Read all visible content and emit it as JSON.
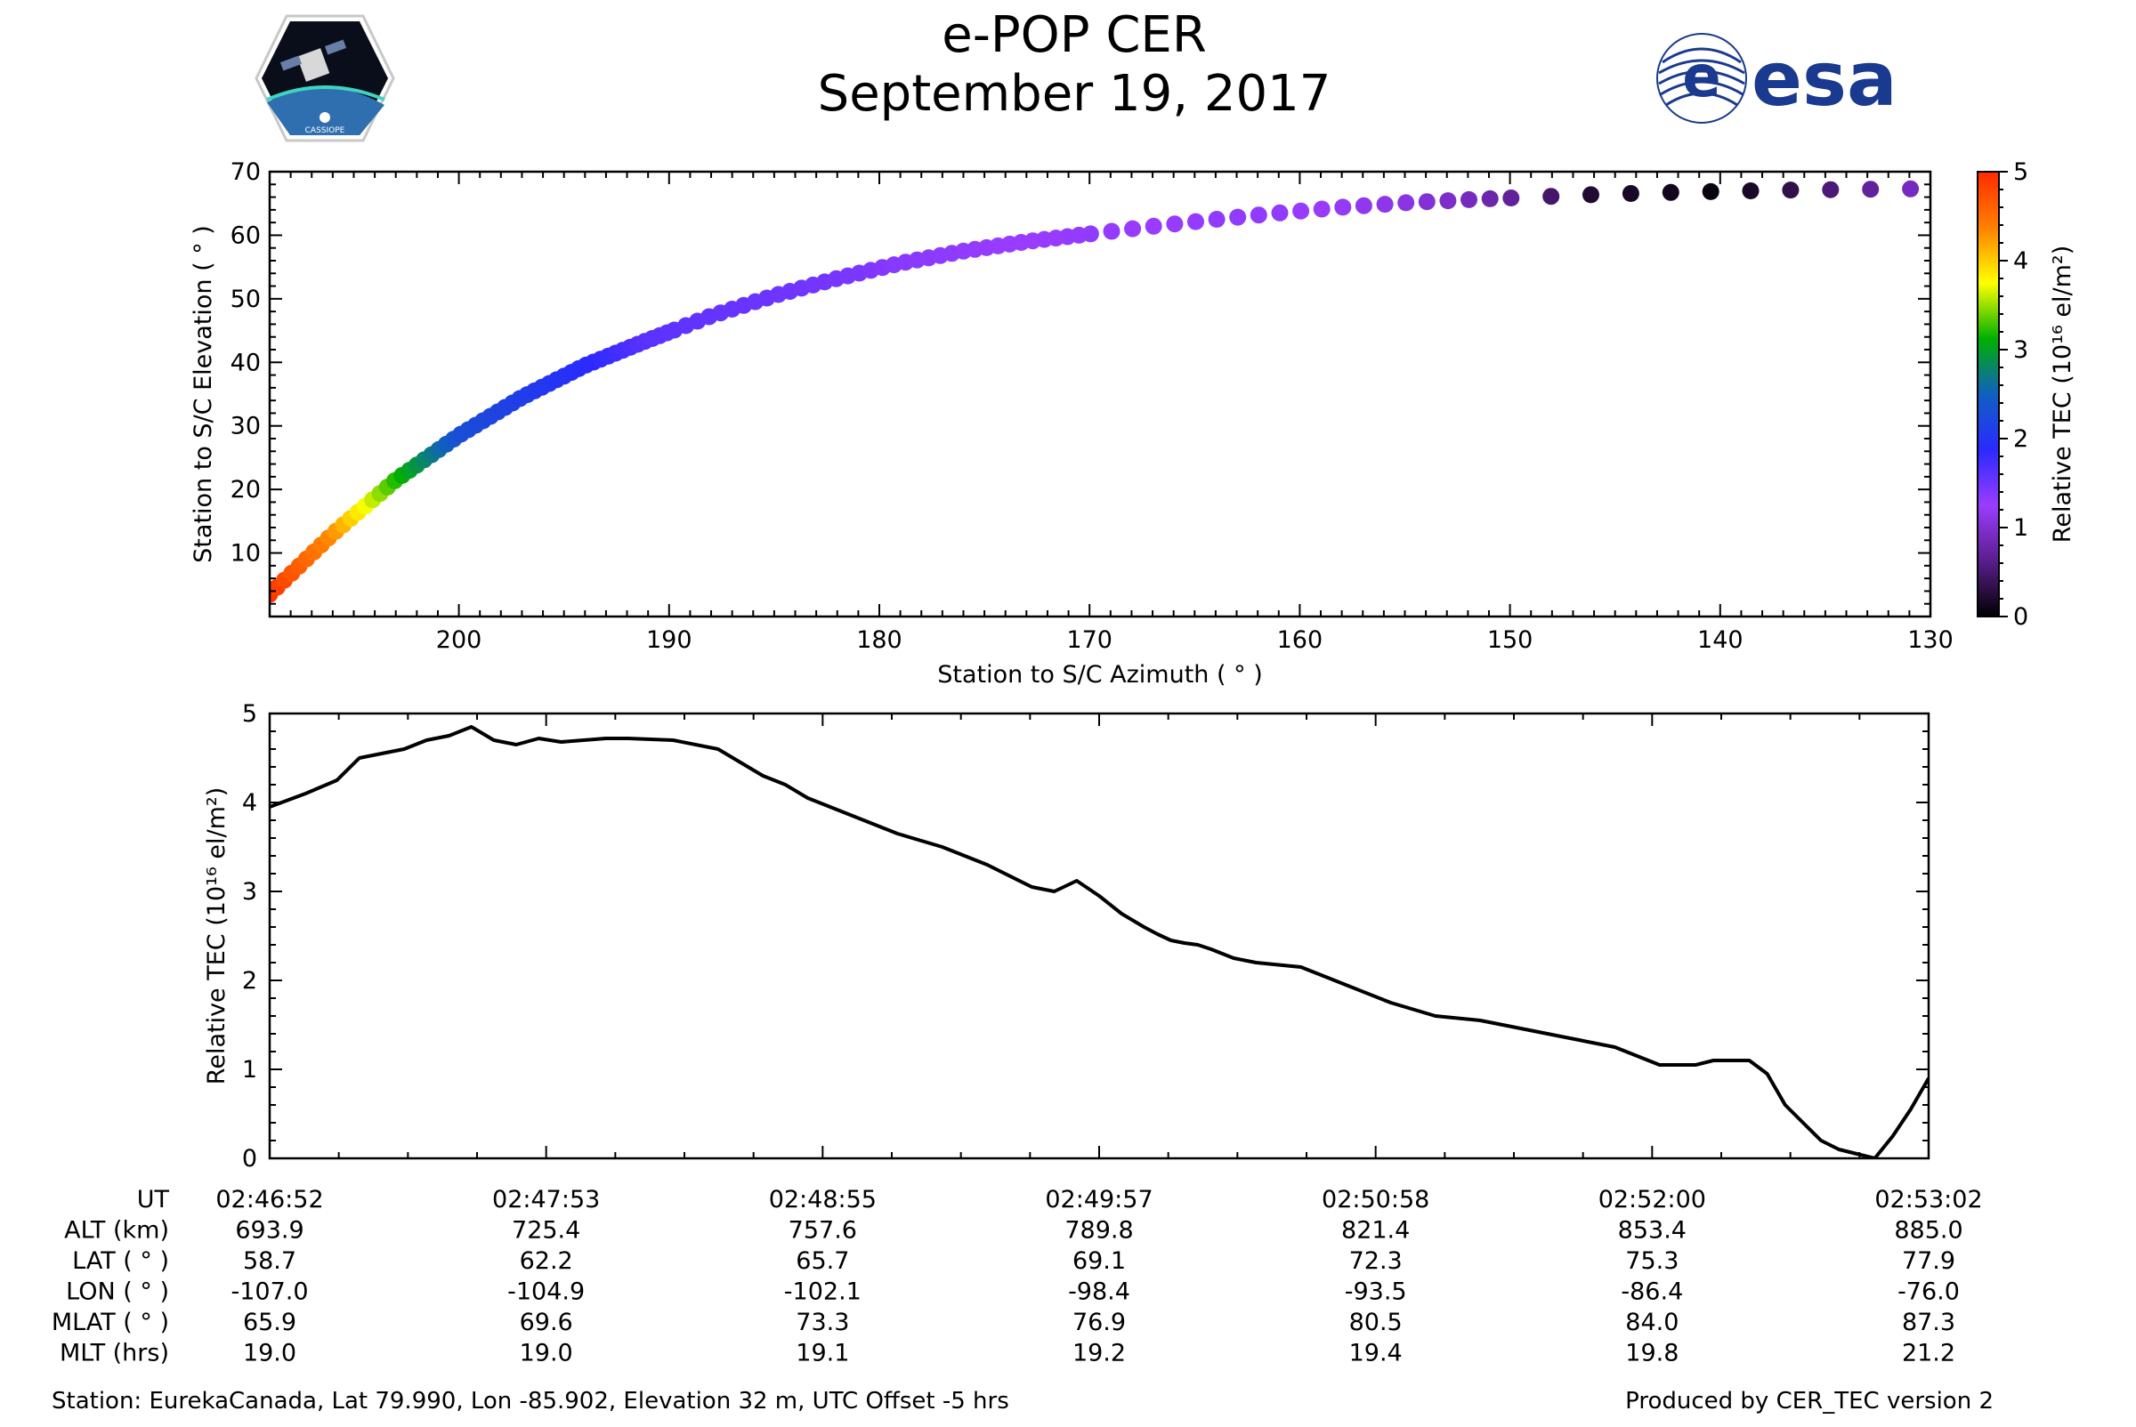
{
  "header": {
    "title": "e-POP CER",
    "date": "September 19, 2017",
    "left_logo_label": "CASSIOPE",
    "right_logo_label": "esa"
  },
  "colors": {
    "line": "#000000",
    "esa_blue": "#1a3a8f",
    "colormap_stops": [
      "#000000",
      "#5a1e8c",
      "#9a3cff",
      "#2a2aff",
      "#1060c0",
      "#00b000",
      "#ffff00",
      "#ff8000",
      "#ff2a00"
    ]
  },
  "chart_data": [
    {
      "type": "scatter",
      "title": "",
      "xlabel": "Station to S/C Azimuth ( ° )",
      "ylabel": "Station to S/C Elevation ( ° )",
      "xlim": [
        209,
        130
      ],
      "ylim": [
        0,
        70
      ],
      "xticks": [
        200,
        190,
        180,
        170,
        160,
        150,
        140,
        130
      ],
      "yticks": [
        10,
        20,
        30,
        40,
        50,
        60,
        70
      ],
      "track": {
        "azimuth": [
          209,
          206,
          203,
          200,
          197,
          194,
          191,
          188,
          185,
          182,
          179,
          176,
          173,
          170,
          167,
          164,
          161,
          158,
          155,
          152,
          149,
          146,
          143,
          140,
          137,
          134,
          131,
          130
        ],
        "elevation": [
          3.5,
          13,
          21.5,
          28.5,
          34.5,
          39.5,
          43.5,
          47.3,
          50.5,
          53.2,
          55.6,
          57.5,
          59.0,
          60.2,
          61.4,
          62.5,
          63.5,
          64.4,
          65.1,
          65.6,
          66.0,
          66.4,
          66.7,
          66.9,
          67.1,
          67.2,
          67.3,
          67.3
        ],
        "tec": [
          4.9,
          4.3,
          3.2,
          2.3,
          2.1,
          1.9,
          1.6,
          1.55,
          1.5,
          1.45,
          1.35,
          1.3,
          1.25,
          1.3,
          1.25,
          1.3,
          1.3,
          1.2,
          1.1,
          0.9,
          0.6,
          0.2,
          0.15,
          0.05,
          0.3,
          0.6,
          0.9,
          0.95
        ]
      },
      "colorbar": {
        "label": "Relative TEC (10¹⁶ el/m²)",
        "range": [
          0,
          5
        ],
        "ticks": [
          "0",
          "1",
          "2",
          "3",
          "4",
          "5"
        ]
      }
    },
    {
      "type": "line",
      "title": "",
      "xlabel": "",
      "ylabel": "Relative TEC (10¹⁶ el/m²)",
      "xlim": [
        0,
        370
      ],
      "ylim": [
        0,
        5
      ],
      "yticks": [
        "0",
        "1",
        "2",
        "3",
        "4",
        "5"
      ],
      "series": [
        {
          "name": "Relative TEC",
          "x": [
            0,
            8,
            15,
            20,
            25,
            30,
            35,
            40,
            45,
            50,
            55,
            60,
            65,
            70,
            75,
            80,
            90,
            100,
            105,
            110,
            115,
            120,
            130,
            140,
            150,
            160,
            170,
            175,
            180,
            185,
            190,
            195,
            198,
            201,
            204,
            207,
            210,
            215,
            220,
            230,
            240,
            250,
            260,
            270,
            280,
            290,
            300,
            310,
            318,
            322,
            326,
            330,
            334,
            338,
            342,
            346,
            350,
            354,
            358,
            362,
            366,
            370
          ],
          "y": [
            3.95,
            4.1,
            4.25,
            4.5,
            4.55,
            4.6,
            4.7,
            4.75,
            4.85,
            4.7,
            4.65,
            4.72,
            4.68,
            4.7,
            4.72,
            4.72,
            4.7,
            4.6,
            4.45,
            4.3,
            4.2,
            4.05,
            3.85,
            3.65,
            3.5,
            3.3,
            3.05,
            3.0,
            3.12,
            2.95,
            2.75,
            2.6,
            2.52,
            2.45,
            2.42,
            2.4,
            2.35,
            2.25,
            2.2,
            2.15,
            1.95,
            1.75,
            1.6,
            1.55,
            1.45,
            1.35,
            1.25,
            1.05,
            1.05,
            1.1,
            1.1,
            1.1,
            0.95,
            0.6,
            0.4,
            0.2,
            0.1,
            0.05,
            0.0,
            0.25,
            0.55,
            0.9
          ]
        }
      ]
    }
  ],
  "x_axis_table": {
    "row_labels": [
      "UT",
      "ALT (km)",
      "LAT ( ° )",
      "LON ( ° )",
      "MLAT ( ° )",
      "MLT (hrs)"
    ],
    "columns": [
      [
        "02:46:52",
        "693.9",
        "58.7",
        "-107.0",
        "65.9",
        "19.0"
      ],
      [
        "02:47:53",
        "725.4",
        "62.2",
        "-104.9",
        "69.6",
        "19.0"
      ],
      [
        "02:48:55",
        "757.6",
        "65.7",
        "-102.1",
        "73.3",
        "19.1"
      ],
      [
        "02:49:57",
        "789.8",
        "69.1",
        "-98.4",
        "76.9",
        "19.2"
      ],
      [
        "02:50:58",
        "821.4",
        "72.3",
        "-93.5",
        "80.5",
        "19.4"
      ],
      [
        "02:52:00",
        "853.4",
        "75.3",
        "-86.4",
        "84.0",
        "19.8"
      ],
      [
        "02:53:02",
        "885.0",
        "77.9",
        "-76.0",
        "87.3",
        "21.2"
      ]
    ]
  },
  "footer": {
    "station_info": "Station: EurekaCanada, Lat 79.990, Lon -85.902, Elevation 32 m, UTC Offset -5 hrs",
    "produced_by": "Produced by CER_TEC version 2"
  }
}
